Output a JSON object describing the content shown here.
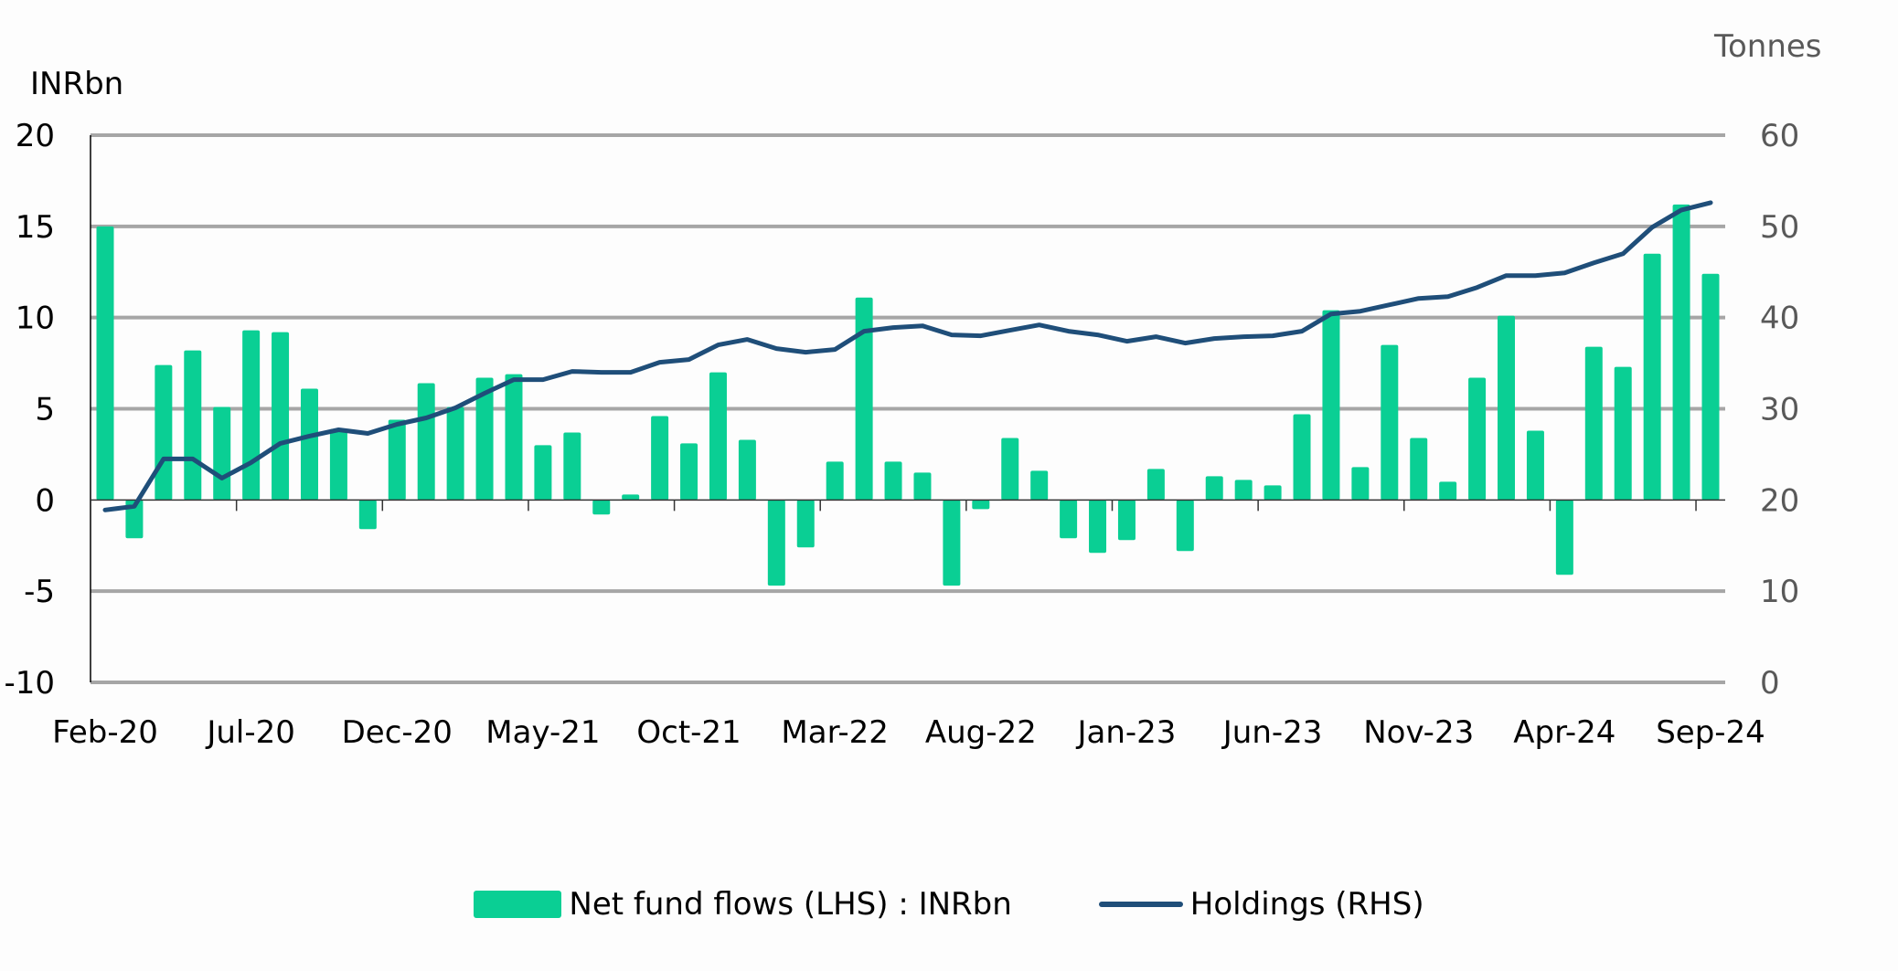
{
  "chart_data": {
    "type": "bar+line",
    "title": "",
    "left_axis_label": "INRbn",
    "right_axis_label": "Tonnes",
    "ylim_left": [
      -10,
      20
    ],
    "ylim_right": [
      0,
      60
    ],
    "left_ticks": [
      "20",
      "15",
      "10",
      "5",
      "0",
      "-5",
      "-10"
    ],
    "left_tick_values": [
      20,
      15,
      10,
      5,
      0,
      -5,
      -10
    ],
    "right_ticks": [
      "60",
      "50",
      "40",
      "30",
      "20",
      "10",
      "0"
    ],
    "right_tick_values": [
      60,
      50,
      40,
      30,
      20,
      10,
      0
    ],
    "grid": true,
    "legend_position": "bottom",
    "x_tick_labels": [
      "Feb-20",
      "Jul-20",
      "Dec-20",
      "May-21",
      "Oct-21",
      "Mar-22",
      "Aug-22",
      "Jan-23",
      "Jun-23",
      "Nov-23",
      "Apr-24",
      "Sep-24"
    ],
    "x_tick_every": 5,
    "categories": [
      "Feb-20",
      "Mar-20",
      "Apr-20",
      "May-20",
      "Jun-20",
      "Jul-20",
      "Aug-20",
      "Sep-20",
      "Oct-20",
      "Nov-20",
      "Dec-20",
      "Jan-21",
      "Feb-21",
      "Mar-21",
      "Apr-21",
      "May-21",
      "Jun-21",
      "Jul-21",
      "Aug-21",
      "Sep-21",
      "Oct-21",
      "Nov-21",
      "Dec-21",
      "Jan-22",
      "Feb-22",
      "Mar-22",
      "Apr-22",
      "May-22",
      "Jun-22",
      "Jul-22",
      "Aug-22",
      "Sep-22",
      "Oct-22",
      "Nov-22",
      "Dec-22",
      "Jan-23",
      "Feb-23",
      "Mar-23",
      "Apr-23",
      "May-23",
      "Jun-23",
      "Jul-23",
      "Aug-23",
      "Sep-23",
      "Oct-23",
      "Nov-23",
      "Dec-23",
      "Jan-24",
      "Feb-24",
      "Mar-24",
      "Apr-24",
      "May-24",
      "Jun-24",
      "Jul-24",
      "Aug-24",
      "Sep-24"
    ],
    "series": [
      {
        "name": "Net fund flows (LHS) : INRbn",
        "type": "bar",
        "axis": "left",
        "color": "#0acf94",
        "values": [
          15.0,
          -2.1,
          7.4,
          8.2,
          5.1,
          9.3,
          9.2,
          6.1,
          3.9,
          -1.6,
          4.4,
          6.4,
          5.1,
          6.7,
          6.9,
          3.0,
          3.7,
          -0.8,
          0.3,
          4.6,
          3.1,
          7.0,
          3.3,
          -4.7,
          -2.6,
          2.1,
          11.1,
          2.1,
          1.5,
          -4.7,
          -0.5,
          3.4,
          1.6,
          -2.1,
          -2.9,
          -2.2,
          1.7,
          -2.8,
          1.3,
          1.1,
          0.8,
          4.7,
          10.4,
          1.8,
          8.5,
          3.4,
          1.0,
          6.7,
          10.1,
          3.8,
          -4.1,
          8.4,
          7.3,
          13.5,
          16.2,
          12.4
        ]
      },
      {
        "name": "Holdings (RHS)",
        "type": "line",
        "axis": "right",
        "color": "#1f4e79",
        "values": [
          18.9,
          19.3,
          24.5,
          24.5,
          22.4,
          24.1,
          26.2,
          27.0,
          27.7,
          27.3,
          28.3,
          29.0,
          30.1,
          31.7,
          33.2,
          33.2,
          34.1,
          34.0,
          34.0,
          35.1,
          35.4,
          37.0,
          37.6,
          36.6,
          36.2,
          36.5,
          38.5,
          38.9,
          39.1,
          38.1,
          38.0,
          38.6,
          39.2,
          38.5,
          38.1,
          37.4,
          37.9,
          37.2,
          37.7,
          37.9,
          38.0,
          38.5,
          40.4,
          40.7,
          41.4,
          42.1,
          42.3,
          43.3,
          44.6,
          44.6,
          44.9,
          46.0,
          47.0,
          49.9,
          51.8,
          52.6
        ]
      }
    ],
    "grid_color": "#a6a6a6"
  },
  "legend": {
    "bar_label": "Net fund flows (LHS) : INRbn",
    "line_label": "Holdings (RHS)"
  }
}
